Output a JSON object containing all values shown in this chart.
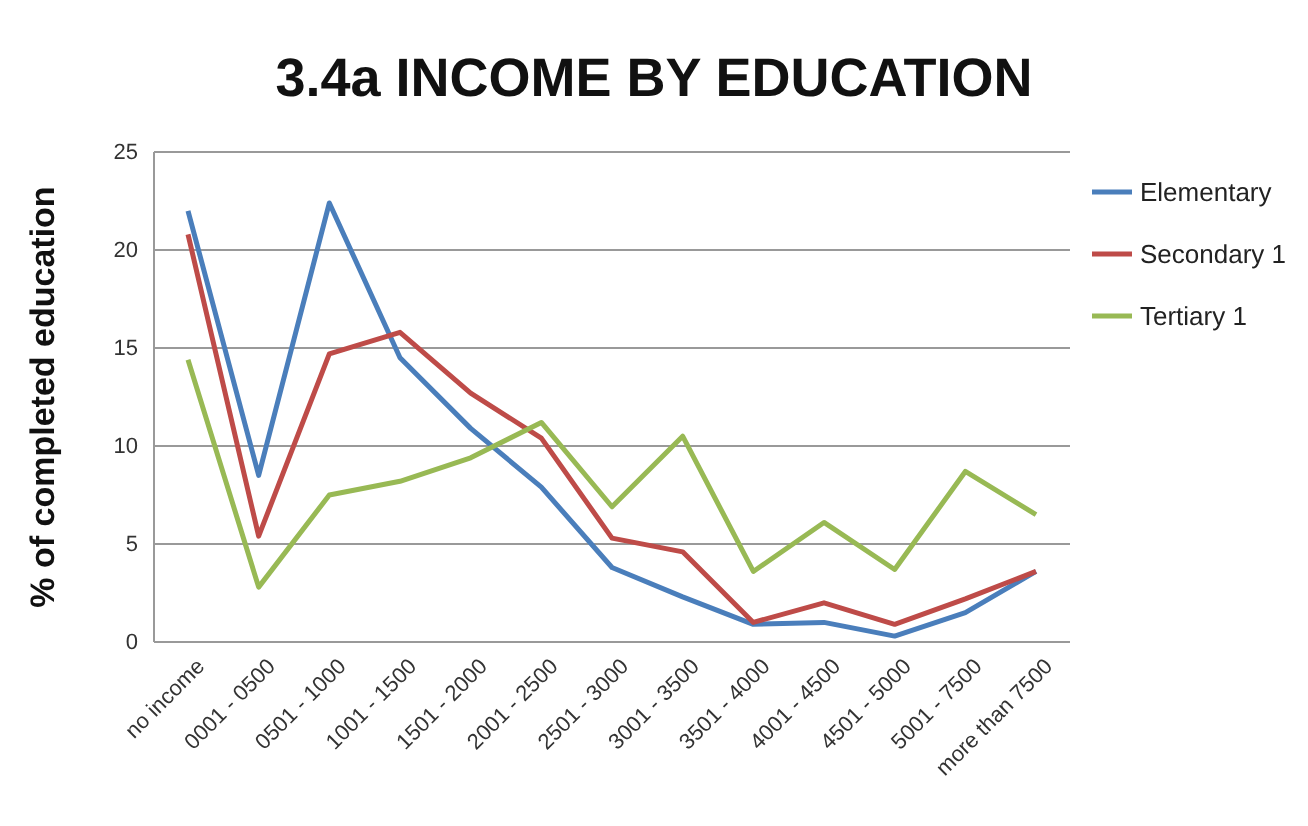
{
  "chart_data": {
    "type": "line",
    "title": "3.4a INCOME BY EDUCATION",
    "ylabel": "% of completed education",
    "categories": [
      "no income",
      "0001 - 0500",
      "0501 - 1000",
      "1001 - 1500",
      "1501 - 2000",
      "2001 - 2500",
      "2501 - 3000",
      "3001 - 3500",
      "3501 - 4000",
      "4001 - 4500",
      "4501 - 5000",
      "5001 - 7500",
      "more than 7500"
    ],
    "series": [
      {
        "name": "Elementary",
        "color": "#4a7ebb",
        "values": [
          22,
          8.5,
          22.4,
          14.5,
          10.9,
          7.9,
          3.8,
          2.3,
          0.9,
          1.0,
          0.3,
          1.5,
          3.6
        ]
      },
      {
        "name": "Secondary 1",
        "color": "#be4b48",
        "values": [
          20.8,
          5.4,
          14.7,
          15.8,
          12.7,
          10.4,
          5.3,
          4.6,
          1.0,
          2.0,
          0.9,
          2.2,
          3.6
        ]
      },
      {
        "name": "Tertiary 1",
        "color": "#98b954",
        "values": [
          14.4,
          2.8,
          7.5,
          8.2,
          9.4,
          11.2,
          6.9,
          10.5,
          3.6,
          6.1,
          3.7,
          8.7,
          6.5
        ]
      }
    ],
    "ylim": [
      0,
      25
    ],
    "yticks": [
      0,
      5,
      10,
      15,
      20,
      25
    ],
    "grid": "y",
    "legend": "right",
    "marker": "none",
    "line_style": "solid"
  }
}
